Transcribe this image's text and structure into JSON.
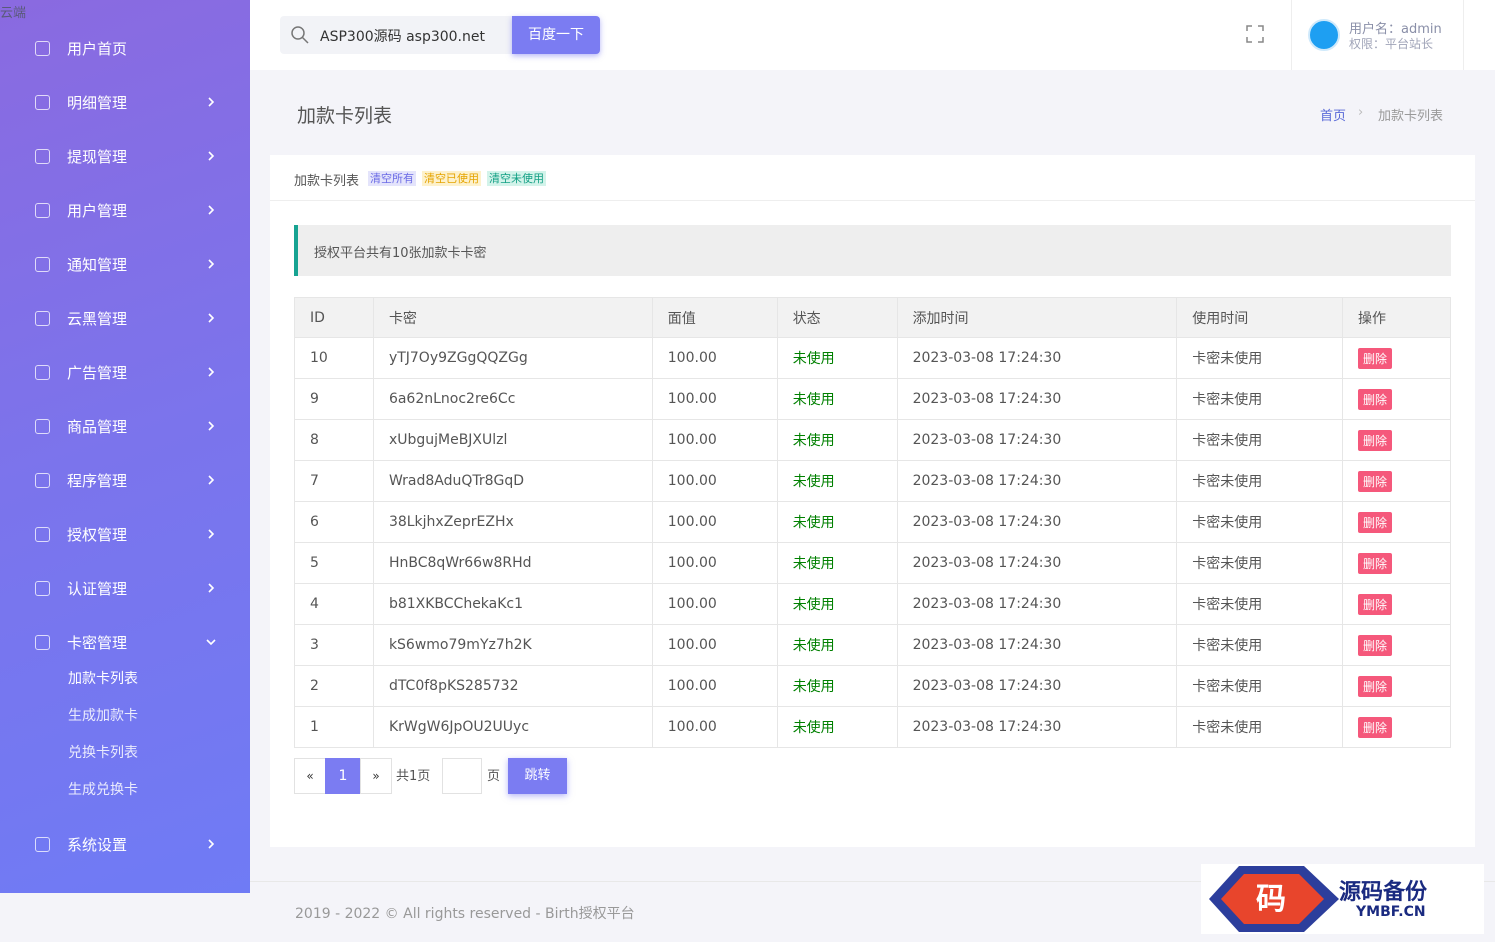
{
  "brand": "云端",
  "sidebar": {
    "items": [
      {
        "label": "用户首页"
      },
      {
        "label": "明细管理"
      },
      {
        "label": "提现管理"
      },
      {
        "label": "用户管理"
      },
      {
        "label": "通知管理"
      },
      {
        "label": "云黑管理"
      },
      {
        "label": "广告管理"
      },
      {
        "label": "商品管理"
      },
      {
        "label": "程序管理"
      },
      {
        "label": "授权管理"
      },
      {
        "label": "认证管理"
      },
      {
        "label": "卡密管理",
        "children": [
          "加款卡列表",
          "生成加款卡",
          "兑换卡列表",
          "生成兑换卡"
        ]
      },
      {
        "label": "系统设置"
      }
    ]
  },
  "header": {
    "search": "ASP300源码 asp300.net",
    "button": "百度一下",
    "user": "用户名：admin",
    "role": "权限：平台站长"
  },
  "page": {
    "title": "加款卡列表",
    "breadcrumb": [
      "首页",
      "加款卡列表"
    ]
  },
  "card": {
    "title": "加款卡列表",
    "tags": [
      "清空所有",
      "清空已使用",
      "清空未使用"
    ],
    "alert": "授权平台共有10张加款卡卡密"
  },
  "table": {
    "columns": [
      "ID",
      "卡密",
      "面值",
      "状态",
      "添加时间",
      "使用时间",
      "操作"
    ],
    "rows": [
      [
        "10",
        "yTJ7Oy9ZGgQQZGg",
        "100.00",
        "未使用",
        "2023-03-08 17:24:30",
        "卡密未使用",
        "删除"
      ],
      [
        "9",
        "6a62nLnoc2re6Cc",
        "100.00",
        "未使用",
        "2023-03-08 17:24:30",
        "卡密未使用",
        "删除"
      ],
      [
        "8",
        "xUbgujMeBJXUlzl",
        "100.00",
        "未使用",
        "2023-03-08 17:24:30",
        "卡密未使用",
        "删除"
      ],
      [
        "7",
        "Wrad8AduQTr8GqD",
        "100.00",
        "未使用",
        "2023-03-08 17:24:30",
        "卡密未使用",
        "删除"
      ],
      [
        "6",
        "38LkjhxZeprEZHx",
        "100.00",
        "未使用",
        "2023-03-08 17:24:30",
        "卡密未使用",
        "删除"
      ],
      [
        "5",
        "HnBC8qWr66w8RHd",
        "100.00",
        "未使用",
        "2023-03-08 17:24:30",
        "卡密未使用",
        "删除"
      ],
      [
        "4",
        "b81XKBCChekaKc1",
        "100.00",
        "未使用",
        "2023-03-08 17:24:30",
        "卡密未使用",
        "删除"
      ],
      [
        "3",
        "kS6wmo79mYz7h2K",
        "100.00",
        "未使用",
        "2023-03-08 17:24:30",
        "卡密未使用",
        "删除"
      ],
      [
        "2",
        "dTC0f8pKS285732",
        "100.00",
        "未使用",
        "2023-03-08 17:24:30",
        "卡密未使用",
        "删除"
      ],
      [
        "1",
        "KrWgW6JpOU2UUyc",
        "100.00",
        "未使用",
        "2023-03-08 17:24:30",
        "卡密未使用",
        "删除"
      ]
    ]
  },
  "pagination": {
    "prev": "«",
    "current": "1",
    "next": "»",
    "total": "共1页",
    "unit": "页",
    "go": "跳转"
  },
  "footer": "2019 - 2022 © All rights reserved - Birth授权平台",
  "watermark": {
    "icon": "码",
    "name": "源码备份",
    "site": "YMBF.CN"
  }
}
